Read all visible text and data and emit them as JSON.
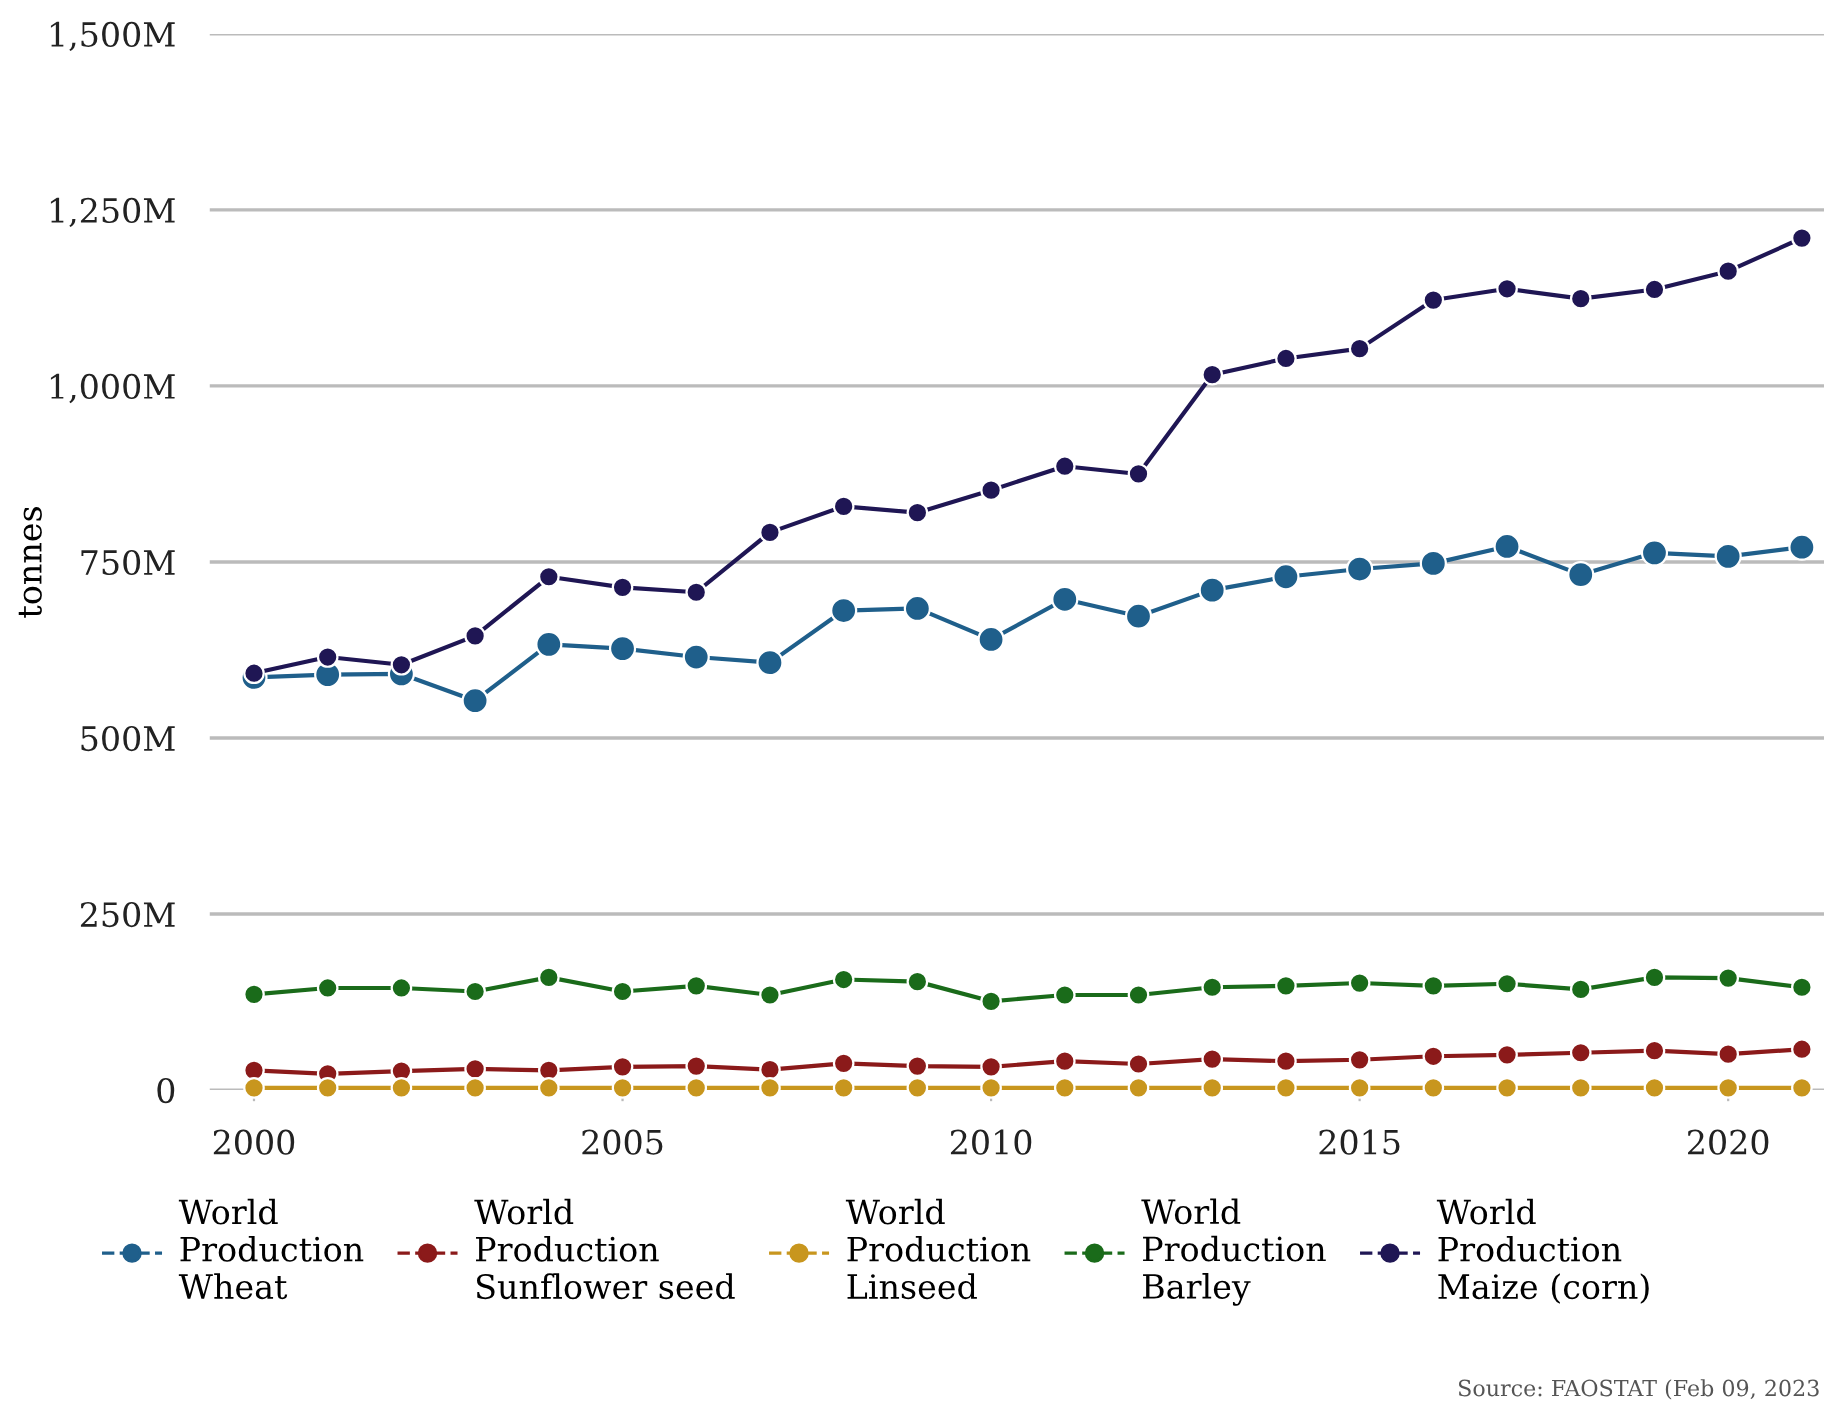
{
  "chart_data": {
    "type": "line",
    "ylabel": "tonnes",
    "x": [
      2000,
      2001,
      2002,
      2003,
      2004,
      2005,
      2006,
      2007,
      2008,
      2009,
      2010,
      2011,
      2012,
      2013,
      2014,
      2015,
      2016,
      2017,
      2018,
      2019,
      2020,
      2021
    ],
    "series": [
      {
        "name": "World\nProduction\nWheat",
        "color": "#1f5f8b",
        "values": [
          586,
          590,
          591,
          553,
          633,
          627,
          615,
          607,
          681,
          684,
          640,
          697,
          673,
          710,
          729,
          740,
          748,
          772,
          732,
          763,
          758,
          771
        ]
      },
      {
        "name": "World\nProduction\nSunflower seed",
        "color": "#8b1a1a",
        "values": [
          28,
          23,
          27,
          30,
          28,
          33,
          34,
          29,
          38,
          34,
          33,
          41,
          37,
          44,
          41,
          43,
          48,
          50,
          53,
          56,
          51,
          58
        ]
      },
      {
        "name": "World\nProduction\nLinseed",
        "color": "#c8961e",
        "values": [
          3,
          3,
          3,
          3,
          3,
          3,
          3,
          3,
          3,
          3,
          3,
          3,
          3,
          3,
          3,
          3,
          3,
          3,
          3,
          3,
          3,
          3
        ]
      },
      {
        "name": "World\nProduction\nBarley",
        "color": "#1a6b1a",
        "values": [
          136,
          145,
          145,
          140,
          160,
          140,
          148,
          135,
          157,
          154,
          126,
          135,
          135,
          146,
          148,
          152,
          148,
          151,
          143,
          160,
          159,
          146
        ]
      },
      {
        "name": "World\nProduction\nMaize (corn)",
        "color": "#1f1654",
        "values": [
          592,
          615,
          604,
          645,
          729,
          714,
          707,
          792,
          829,
          820,
          852,
          886,
          875,
          1016,
          1039,
          1053,
          1122,
          1138,
          1124,
          1137,
          1163,
          1210
        ]
      }
    ],
    "xlim": [
      1999.4,
      2021.3
    ],
    "ylim": [
      0,
      1500
    ],
    "xticks": [
      2000,
      2005,
      2010,
      2015,
      2020
    ],
    "yticks": [
      0,
      {
        "value": 250,
        "label": "250M"
      },
      {
        "value": 500,
        "label": "500M"
      },
      {
        "value": 750,
        "label": "750M"
      },
      {
        "value": 1000,
        "label": "1,000M"
      },
      {
        "value": 1250,
        "label": "1,250M"
      },
      {
        "value": 1500,
        "label": "1,500M"
      }
    ],
    "grid": "y",
    "legend": "bottom",
    "marker": "circle",
    "line_style": "solid",
    "annotations": [
      "Source: FAOSTAT (Feb 09, 2023"
    ]
  }
}
